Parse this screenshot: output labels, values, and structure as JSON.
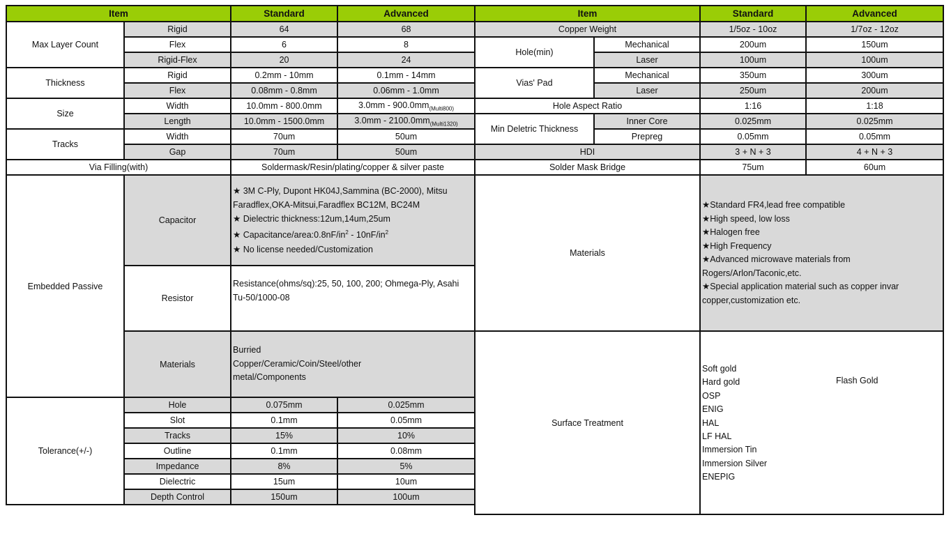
{
  "header": {
    "item": "Item",
    "standard": "Standard",
    "advanced": "Advanced"
  },
  "left": {
    "max_layer": {
      "label": "Max Layer Count",
      "rows": [
        [
          "Rigid",
          "64",
          "68"
        ],
        [
          "Flex",
          "6",
          "8"
        ],
        [
          "Rigid-Flex",
          "20",
          "24"
        ]
      ]
    },
    "thickness": {
      "label": "Thickness",
      "rows": [
        [
          "Rigid",
          "0.2mm - 10mm",
          "0.1mm - 14mm"
        ],
        [
          "Flex",
          "0.08mm - 0.8mm",
          "0.06mm - 1.0mm"
        ]
      ]
    },
    "size": {
      "label": "Size",
      "rows": [
        {
          "sub": "Width",
          "standard": "10.0mm - 800.0mm",
          "advanced": "3.0mm - 900.0mm",
          "advanced_note": "(Multi800)"
        },
        {
          "sub": "Length",
          "standard": "10.0mm - 1500.0mm",
          "advanced": "3.0mm - 2100.0mm",
          "advanced_note": "(Multi1320)"
        }
      ]
    },
    "tracks": {
      "label": "Tracks",
      "rows": [
        [
          "Width",
          "70um",
          "50um"
        ],
        [
          "Gap",
          "70um",
          "50um"
        ]
      ]
    },
    "via_filling": {
      "label": "Via Filling(with)",
      "value": "Soldermask/Resin/plating/copper & silver paste"
    },
    "embedded_passive": {
      "label": "Embedded Passive",
      "capacitor": {
        "label": "Capacitor",
        "lines": [
          "★ 3M C-Ply, Dupont HK04J,Sammina (BC-2000), Mitsu Faradflex,OKA-Mitsui,Faradflex BC12M, BC24M",
          "★ Dielectric thickness:12um,14um,25um",
          "★ Capacitance/area:0.8nF/in",
          "2",
          " - 10nF/in",
          "2",
          "★ No license needed/Customization"
        ]
      },
      "resistor": {
        "label": "Resistor",
        "value": "Resistance(ohms/sq):25, 50, 100, 200; Ohmega-Ply, Asahi Tu-50/1000-08"
      },
      "materials": {
        "label": "Materials",
        "value": "Burried Copper/Ceramic/Coin/Steel/other metal/Components"
      }
    },
    "tolerance": {
      "label": "Tolerance(+/-)",
      "rows": [
        [
          "Hole",
          "0.075mm",
          "0.025mm"
        ],
        [
          "Slot",
          "0.1mm",
          "0.05mm"
        ],
        [
          "Tracks",
          "15%",
          "10%"
        ],
        [
          "Outline",
          "0.1mm",
          "0.08mm"
        ],
        [
          "Impedance",
          "8%",
          "5%"
        ],
        [
          "Dielectric",
          "15um",
          "10um"
        ],
        [
          "Depth Control",
          "150um",
          "100um"
        ]
      ]
    }
  },
  "right": {
    "copper_weight": {
      "label": "Copper Weight",
      "standard": "1/5oz - 10oz",
      "advanced": "1/7oz - 12oz"
    },
    "hole_min": {
      "label": "Hole(min)",
      "rows": [
        [
          "Mechanical",
          "200um",
          "150um"
        ],
        [
          "Laser",
          "100um",
          "100um"
        ]
      ]
    },
    "vias_pad": {
      "label": "Vias' Pad",
      "rows": [
        [
          "Mechanical",
          "350um",
          "300um"
        ],
        [
          "Laser",
          "250um",
          "200um"
        ]
      ]
    },
    "hole_aspect_ratio": {
      "label": "Hole Aspect Ratio",
      "standard": "1:16",
      "advanced": "1:18"
    },
    "min_dielectric": {
      "label": "Min Deletric Thickness",
      "rows": [
        [
          "Inner Core",
          "0.025mm",
          "0.025mm"
        ],
        [
          "Prepreg",
          "0.05mm",
          "0.05mm"
        ]
      ]
    },
    "hdi": {
      "label": "HDI",
      "standard": "3 + N + 3",
      "advanced": "4 + N + 3"
    },
    "solder_mask_bridge": {
      "label": "Solder Mask Bridge",
      "standard": "75um",
      "advanced": "60um"
    },
    "materials": {
      "label": "Materials",
      "lines": [
        "★Standard FR4,lead free compatible",
        "★High speed, low loss",
        "★Halogen free",
        "★High Frequency",
        "★Advanced microwave materials from Rogers/Arlon/Taconic,etc.",
        "★Special application material such as copper invar copper,customization etc."
      ]
    },
    "surface_treatment": {
      "label": "Surface Treatment",
      "standard": [
        "Soft gold",
        "Hard gold",
        "OSP",
        "ENIG",
        "HAL",
        "LF HAL",
        "Immersion Tin",
        "Immersion Silver",
        "ENEPIG"
      ],
      "advanced": "Flash Gold"
    }
  },
  "colors": {
    "header_bg": "#9acd06",
    "shaded_row": "#d9d9d9",
    "border": "#111111"
  }
}
